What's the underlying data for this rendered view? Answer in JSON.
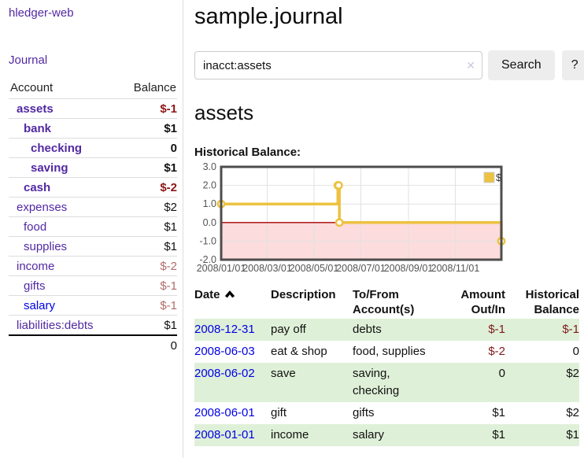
{
  "colors": {
    "link_purple": "#5229a3",
    "link_blue": "#0000e6",
    "negative_strong": "#8e1616",
    "negative_soft": "#b26b6b",
    "negative_table": "#7f1a1a",
    "row_green": "#dff0d8",
    "chart_gold": "#edc240",
    "chart_negative_region": "#fcdcdc",
    "chart_zero_line": "#aa0000",
    "chart_border": "#4d4d4d",
    "button_gray": "#ededed"
  },
  "sidebar": {
    "app_title": "hledger-web",
    "journal_label": "Journal",
    "accounts_header": {
      "account": "Account",
      "balance": "Balance"
    },
    "accounts": [
      {
        "label": "assets",
        "balance": "$-1",
        "indent": 0,
        "bold": true,
        "balance_tone": "negative",
        "link_color": "purple"
      },
      {
        "label": "bank",
        "balance": "$1",
        "indent": 1,
        "bold": true,
        "balance_tone": "normal",
        "link_color": "purple"
      },
      {
        "label": "checking",
        "balance": "0",
        "indent": 2,
        "bold": true,
        "balance_tone": "normal",
        "link_color": "purple"
      },
      {
        "label": "saving",
        "balance": "$1",
        "indent": 2,
        "bold": true,
        "balance_tone": "normal",
        "link_color": "purple"
      },
      {
        "label": "cash",
        "balance": "$-2",
        "indent": 1,
        "bold": true,
        "balance_tone": "negative",
        "link_color": "purple"
      },
      {
        "label": "expenses",
        "balance": "$2",
        "indent": 0,
        "bold": false,
        "balance_tone": "normal",
        "link_color": "purple"
      },
      {
        "label": "food",
        "balance": "$1",
        "indent": 1,
        "bold": false,
        "balance_tone": "normal",
        "link_color": "purple"
      },
      {
        "label": "supplies",
        "balance": "$1",
        "indent": 1,
        "bold": false,
        "balance_tone": "normal",
        "link_color": "purple"
      },
      {
        "label": "income",
        "balance": "$-2",
        "indent": 0,
        "bold": false,
        "balance_tone": "negative_soft",
        "link_color": "purple"
      },
      {
        "label": "gifts",
        "balance": "$-1",
        "indent": 1,
        "bold": false,
        "balance_tone": "negative_soft",
        "link_color": "purple"
      },
      {
        "label": "salary",
        "balance": "$-1",
        "indent": 1,
        "bold": false,
        "balance_tone": "negative_soft",
        "link_color": "blue"
      },
      {
        "label": "liabilities:debts",
        "balance": "$1",
        "indent": 0,
        "bold": false,
        "balance_tone": "normal",
        "link_color": "purple"
      }
    ],
    "total": "0"
  },
  "main": {
    "title": "sample.journal",
    "search": {
      "query": "inacct:assets",
      "clear_icon": "✕",
      "button_label": "Search",
      "help_label": "?"
    },
    "account_heading": "assets",
    "chart_label": "Historical Balance:",
    "register": {
      "headers": {
        "date": "Date",
        "description": "Description",
        "accounts": "To/From Account(s)",
        "amount": "Amount Out/In",
        "balance": "Historical Balance"
      },
      "sort": {
        "column": "date",
        "direction": "ascending",
        "icon": "chevron-up-icon"
      },
      "rows": [
        {
          "date": "2008-12-31",
          "description": "pay off",
          "accounts": "debts",
          "amount": "$-1",
          "amount_negative": true,
          "balance": "$-1",
          "balance_negative": true
        },
        {
          "date": "2008-06-03",
          "description": "eat & shop",
          "accounts": "food, supplies",
          "amount": "$-2",
          "amount_negative": true,
          "balance": "0",
          "balance_negative": false
        },
        {
          "date": "2008-06-02",
          "description": "save",
          "accounts": "saving,\nchecking",
          "amount": "0",
          "amount_negative": false,
          "balance": "$2",
          "balance_negative": false
        },
        {
          "date": "2008-06-01",
          "description": "gift",
          "accounts": "gifts",
          "amount": "$1",
          "amount_negative": false,
          "balance": "$2",
          "balance_negative": false
        },
        {
          "date": "2008-01-01",
          "description": "income",
          "accounts": "salary",
          "amount": "$1",
          "amount_negative": false,
          "balance": "$1",
          "balance_negative": false
        }
      ]
    }
  },
  "chart_data": {
    "type": "line",
    "title": "Historical Balance:",
    "step": true,
    "series": [
      {
        "name": "$",
        "color": "#edc240",
        "points": [
          [
            "2008-01-01",
            1
          ],
          [
            "2008-06-01",
            2
          ],
          [
            "2008-06-02",
            2
          ],
          [
            "2008-06-03",
            0
          ],
          [
            "2008-12-31",
            -1
          ]
        ]
      }
    ],
    "xlim": [
      "2008-01-01",
      "2008-12-31"
    ],
    "ylim": [
      -2,
      3
    ],
    "yticks": [
      3,
      2,
      1,
      0,
      -1,
      -2
    ],
    "xticks": [
      "2008/01/01",
      "2008/03/01",
      "2008/05/01",
      "2008/07/01",
      "2008/09/01",
      "2008/11/01"
    ],
    "grid": true,
    "legend": {
      "label": "$",
      "position": "top-right"
    },
    "negative_region_color": "#fcdcdc",
    "zero_line_color": "#aa0000",
    "border_color": "#4d4d4d",
    "tick_label_color": "#545454"
  }
}
